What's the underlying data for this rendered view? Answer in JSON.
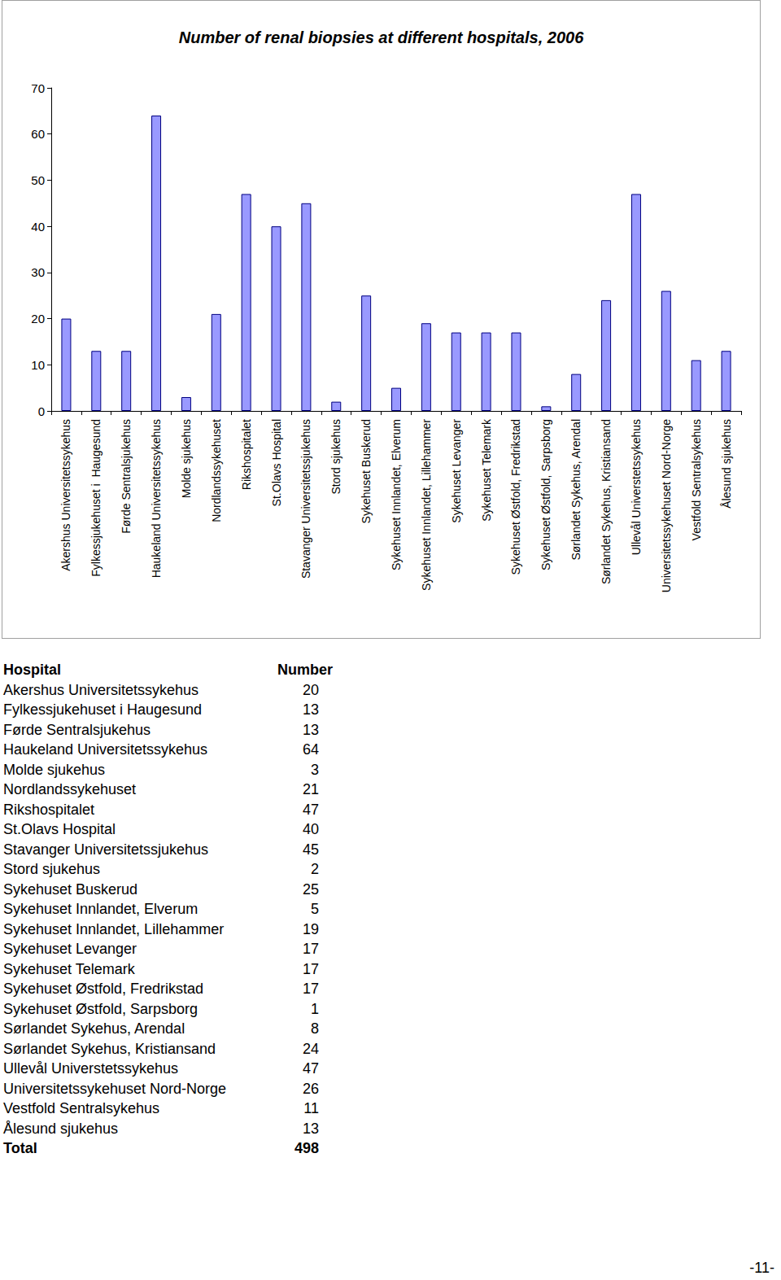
{
  "chart_data": {
    "type": "bar",
    "title": "Number of renal biopsies at different hospitals, 2006",
    "categories": [
      "Akershus Universitetssykehus",
      "Fylkessjukehuset i  Haugesund",
      "Førde Sentralsjukehus",
      "Haukeland Universitetssykehus",
      "Molde sjukehus",
      "Nordlandssykehuset",
      "Rikshospitalet",
      "St.Olavs Hospital",
      "Stavanger Universitetssjukehus",
      "Stord sjukehus",
      "Sykehuset Buskerud",
      "Sykehuset Innlandet, Elverum",
      "Sykehuset Innlandet, Lillehammer",
      "Sykehuset Levanger",
      "Sykehuset Telemark",
      "Sykehuset Østfold, Fredrikstad",
      "Sykehuset Østfold, Sarpsborg",
      "Sørlandet Sykehus, Arendal",
      "Sørlandet Sykehus, Kristiansand",
      "Ullevål Universtetssykehus",
      "Universitetssykehuset Nord-Norge",
      "Vestfold Sentralsykehus",
      "Ålesund sjukehus"
    ],
    "values": [
      20,
      13,
      13,
      64,
      3,
      21,
      47,
      40,
      45,
      2,
      25,
      5,
      19,
      17,
      17,
      17,
      1,
      8,
      24,
      47,
      26,
      11,
      13
    ],
    "color": "#9999ff",
    "ylim": [
      0,
      70
    ],
    "yticks": [
      0,
      10,
      20,
      30,
      40,
      50,
      60,
      70
    ],
    "grid": false
  },
  "table": {
    "header": [
      "Hospital",
      "Number"
    ],
    "rows": [
      [
        "Akershus Universitetssykehus",
        "20"
      ],
      [
        "Fylkessjukehuset i  Haugesund",
        "13"
      ],
      [
        "Førde Sentralsjukehus",
        "13"
      ],
      [
        "Haukeland Universitetssykehus",
        "64"
      ],
      [
        "Molde sjukehus",
        "3"
      ],
      [
        "Nordlandssykehuset",
        "21"
      ],
      [
        "Rikshospitalet",
        "47"
      ],
      [
        "St.Olavs Hospital",
        "40"
      ],
      [
        "Stavanger Universitetssjukehus",
        "45"
      ],
      [
        "Stord sjukehus",
        "2"
      ],
      [
        "Sykehuset Buskerud",
        "25"
      ],
      [
        "Sykehuset Innlandet, Elverum",
        "5"
      ],
      [
        "Sykehuset Innlandet, Lillehammer",
        "19"
      ],
      [
        "Sykehuset Levanger",
        "17"
      ],
      [
        "Sykehuset Telemark",
        "17"
      ],
      [
        "Sykehuset Østfold, Fredrikstad",
        "17"
      ],
      [
        "Sykehuset Østfold, Sarpsborg",
        "1"
      ],
      [
        "Sørlandet Sykehus, Arendal",
        "8"
      ],
      [
        "Sørlandet Sykehus, Kristiansand",
        "24"
      ],
      [
        "Ullevål Universtetssykehus",
        "47"
      ],
      [
        "Universitetssykehuset Nord-Norge",
        "26"
      ],
      [
        "Vestfold Sentralsykehus",
        "11"
      ],
      [
        "Ålesund sjukehus",
        "13"
      ]
    ],
    "total": [
      "Total",
      "498"
    ]
  },
  "page_number": "-11-"
}
